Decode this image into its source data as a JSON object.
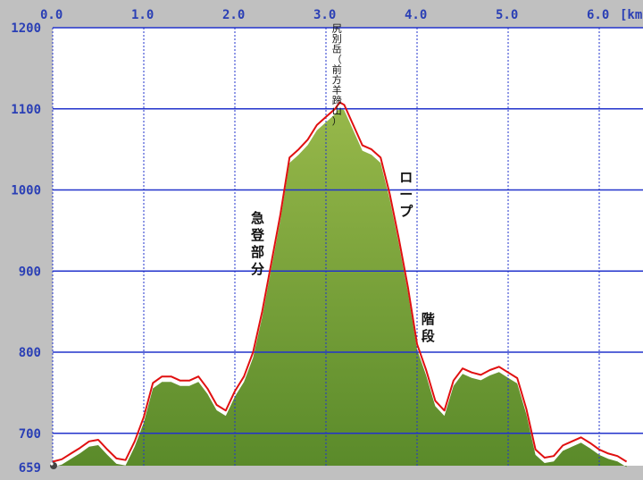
{
  "chart_data": {
    "type": "area",
    "title": "",
    "xlabel": "km",
    "ylabel": "",
    "xlim": [
      -0.03,
      6.3
    ],
    "ylim": [
      659,
      1200
    ],
    "x_ticks": [
      "0.0",
      "1.0",
      "2.0",
      "3.0",
      "4.0",
      "5.0",
      "6.0"
    ],
    "x_unit_label": "[km",
    "y_ticks": [
      "1200",
      "1100",
      "1000",
      "900",
      "800",
      "700"
    ],
    "y_min_label": "659",
    "grid": true,
    "colors": {
      "background": "#c0c0c0",
      "plot_background": "#ffffff",
      "grid": "#2233cc",
      "ground": "#5a8a2a",
      "track": "#e01010",
      "tick_text": "#2a3fb5"
    },
    "series": [
      {
        "x": [
          0.0,
          0.1,
          0.2,
          0.3,
          0.4,
          0.5,
          0.6,
          0.7,
          0.8,
          0.9,
          1.0,
          1.1,
          1.2,
          1.3,
          1.4,
          1.5,
          1.6,
          1.7,
          1.8,
          1.9,
          2.0,
          2.1,
          2.2,
          2.3,
          2.4,
          2.5,
          2.6,
          2.7,
          2.8,
          2.9,
          3.0,
          3.1,
          3.15,
          3.2,
          3.3,
          3.4,
          3.5,
          3.6,
          3.7,
          3.8,
          3.9,
          4.0,
          4.1,
          4.2,
          4.3,
          4.4,
          4.5,
          4.6,
          4.7,
          4.8,
          4.9,
          5.0,
          5.1,
          5.2,
          5.3,
          5.4,
          5.5,
          5.6,
          5.7,
          5.8,
          5.9,
          6.0,
          6.1,
          6.2,
          6.3
        ],
        "y": [
          665,
          668,
          675,
          682,
          690,
          692,
          680,
          669,
          667,
          690,
          720,
          762,
          770,
          770,
          765,
          765,
          770,
          755,
          735,
          728,
          752,
          770,
          800,
          850,
          910,
          970,
          1040,
          1050,
          1062,
          1080,
          1090,
          1100,
          1108,
          1105,
          1080,
          1055,
          1050,
          1040,
          995,
          940,
          880,
          810,
          778,
          740,
          728,
          765,
          780,
          775,
          772,
          778,
          782,
          775,
          768,
          730,
          680,
          670,
          672,
          685,
          690,
          695,
          688,
          680,
          675,
          672,
          665
        ]
      }
    ],
    "annotations": [
      {
        "text": "急登部分",
        "x": 2.25,
        "y": 960,
        "orientation": "vertical"
      },
      {
        "text": "ロープ",
        "x": 3.88,
        "y": 1010,
        "orientation": "vertical"
      },
      {
        "text": "階段",
        "x": 4.12,
        "y": 835,
        "orientation": "vertical"
      },
      {
        "text": "尻別岳（前方羊蹄山）",
        "x": 3.12,
        "y": 1195,
        "orientation": "vertical"
      }
    ]
  }
}
